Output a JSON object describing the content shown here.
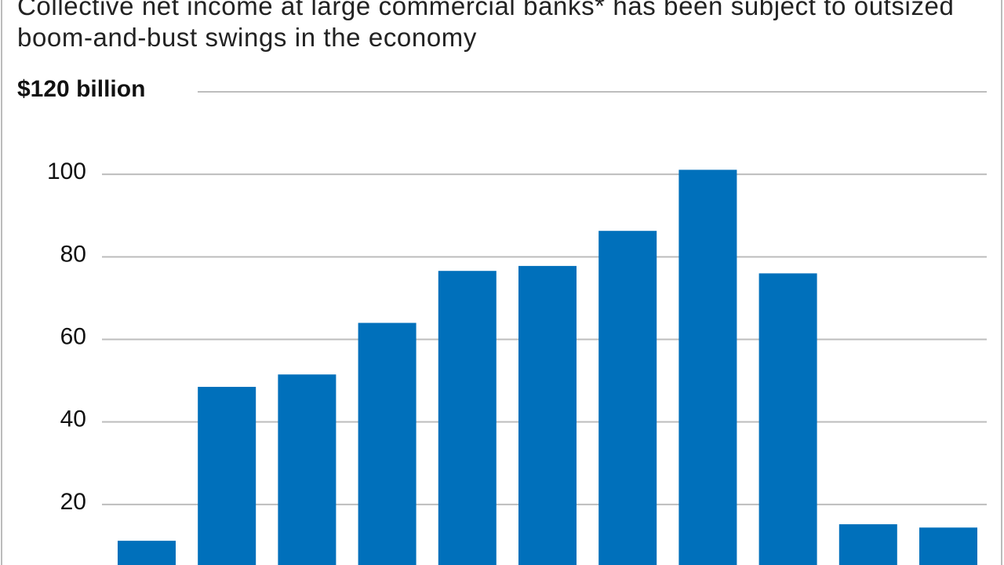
{
  "chart_data": {
    "type": "bar",
    "title": "Collective net income at large commercial banks* has been subject to outsized boom-and-bust swings in the economy",
    "categories": [
      null,
      null,
      null,
      null,
      null,
      null,
      null,
      null,
      null,
      null,
      null
    ],
    "values": [
      11.2,
      48.5,
      51.5,
      64,
      76.6,
      77.8,
      86.3,
      101.1,
      76,
      15.2,
      14.4
    ],
    "color": "#0070bb",
    "ylim": [
      0,
      120
    ],
    "yticks": [
      20,
      40,
      60,
      80,
      100,
      {
        "value": 120,
        "label": "$120 billion"
      }
    ],
    "grid": true
  }
}
